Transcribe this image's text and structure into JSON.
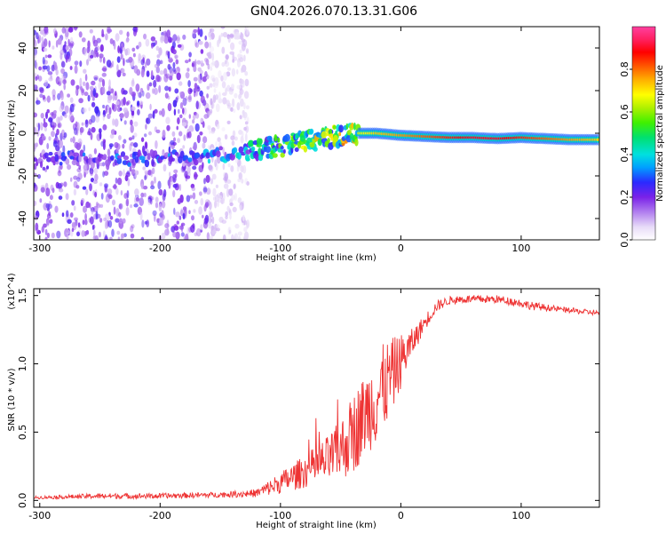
{
  "title": "GN04.2026.070.13.31.G06",
  "colors": {
    "snr_line": "#ee3333",
    "background": "#ffffff"
  },
  "chart_data": [
    {
      "type": "heatmap",
      "name": "spectrogram",
      "xlabel": "Height of straight line (km)",
      "ylabel": "Frequency (Hz)",
      "xlim": [
        -305,
        165
      ],
      "ylim": [
        -50,
        50
      ],
      "x_ticks": [
        -300,
        -200,
        -100,
        0,
        100
      ],
      "x_tick_labels": [
        "-300",
        "-200",
        "-100",
        "0",
        "100"
      ],
      "y_ticks": [
        -40,
        -20,
        0,
        20,
        40
      ],
      "y_tick_labels": [
        "-40",
        "-20",
        "0",
        "20",
        "40"
      ],
      "colorbar": {
        "label": "Normalized spectral amplitude",
        "range": [
          0,
          1
        ],
        "ticks": [
          0.0,
          0.2,
          0.4,
          0.6,
          0.8
        ],
        "tick_labels": [
          "0.0",
          "0.2",
          "0.4",
          "0.6",
          "0.8"
        ]
      },
      "ridge": {
        "description": "dominant frequency ridge",
        "x": [
          -305,
          -250,
          -200,
          -150,
          -130,
          -100,
          -80,
          -60,
          -40,
          -20,
          0,
          20,
          40,
          60,
          80,
          100,
          120,
          140,
          165
        ],
        "y": [
          -12,
          -12,
          -12,
          -10,
          -8,
          -6,
          -4,
          -2,
          0,
          0,
          -1,
          -1.5,
          -2,
          -2,
          -2.5,
          -2,
          -2.5,
          -3,
          -3
        ],
        "peak_amplitude": [
          0.2,
          0.3,
          0.3,
          0.35,
          0.4,
          0.5,
          0.6,
          0.65,
          0.7,
          0.8,
          0.85,
          0.9,
          0.95,
          1.0,
          1.0,
          0.95,
          0.9,
          0.85,
          0.8
        ]
      },
      "noise_region_x": [
        -305,
        -135
      ]
    },
    {
      "type": "line",
      "name": "snr",
      "xlabel": "Height of straight line (km)",
      "ylabel": "SNR (10 * v/v)",
      "y_multiplier": "(x10^4)",
      "xlim": [
        -305,
        165
      ],
      "ylim": [
        -0.05,
        1.55
      ],
      "x_ticks": [
        -300,
        -200,
        -100,
        0,
        100
      ],
      "x_tick_labels": [
        "-300",
        "-200",
        "-100",
        "0",
        "100"
      ],
      "y_ticks": [
        0.0,
        0.5,
        1.0,
        1.5
      ],
      "y_tick_labels": [
        "0.0",
        "0.5",
        "1.0",
        "1.5"
      ],
      "series": [
        {
          "name": "SNR",
          "x": [
            -305,
            -250,
            -200,
            -150,
            -120,
            -100,
            -80,
            -60,
            -50,
            -40,
            -30,
            -20,
            -10,
            0,
            10,
            20,
            30,
            40,
            50,
            60,
            80,
            95,
            110,
            130,
            150,
            165
          ],
          "y": [
            0.02,
            0.03,
            0.03,
            0.04,
            0.05,
            0.12,
            0.2,
            0.28,
            0.35,
            0.45,
            0.6,
            0.72,
            0.85,
            1.0,
            1.15,
            1.3,
            1.42,
            1.46,
            1.47,
            1.47,
            1.47,
            1.45,
            1.42,
            1.4,
            1.38,
            1.37
          ],
          "noise_amplitude": [
            0.01,
            0.02,
            0.02,
            0.02,
            0.03,
            0.08,
            0.12,
            0.18,
            0.22,
            0.3,
            0.3,
            0.35,
            0.3,
            0.2,
            0.1,
            0.06,
            0.04,
            0.03,
            0.03,
            0.03,
            0.03,
            0.03,
            0.03,
            0.02,
            0.02,
            0.02
          ]
        }
      ]
    }
  ]
}
